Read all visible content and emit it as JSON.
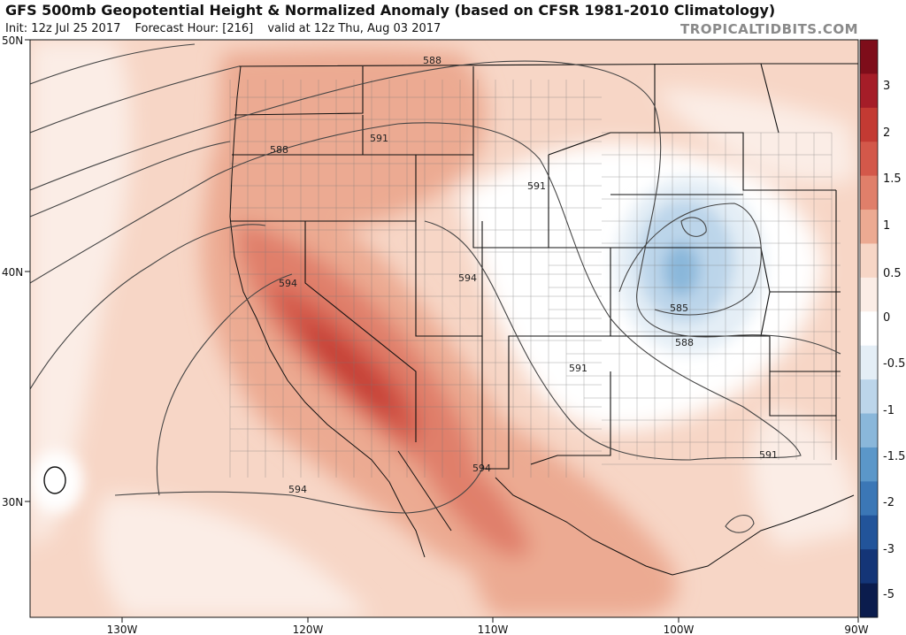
{
  "header": {
    "title": "GFS 500mb Geopotential Height & Normalized Anomaly (based on CFSR 1981-2010 Climatology)",
    "init": "Init: 12z Jul 25 2017",
    "forecast_hour": "Forecast Hour: [216]",
    "valid": "valid at 12z Thu, Aug 03 2017",
    "watermark": "TROPICALTIDBITS.COM"
  },
  "map": {
    "lat_labels": [
      "50N",
      "40N",
      "30N"
    ],
    "lon_labels": [
      "130W",
      "120W",
      "110W",
      "100W",
      "90W"
    ],
    "contour_labels": [
      "588",
      "591",
      "588",
      "591",
      "594",
      "594",
      "591",
      "585",
      "588",
      "591",
      "591",
      "594",
      "594"
    ]
  },
  "colorbar": {
    "labels": [
      "3",
      "2",
      "1.5",
      "1",
      "0.5",
      "0",
      "-0.5",
      "-1",
      "-1.5",
      "-2",
      "-3",
      "-5"
    ],
    "colors": [
      "#7e0d1a",
      "#a51d28",
      "#c33a33",
      "#d3584a",
      "#e07f6a",
      "#ecaa92",
      "#f7d6c6",
      "#fbede6",
      "#ffffff",
      "#e4eef6",
      "#bcd5ea",
      "#8ab7da",
      "#5b97c9",
      "#3b77b6",
      "#22549a",
      "#143577",
      "#0b1c4d"
    ]
  }
}
